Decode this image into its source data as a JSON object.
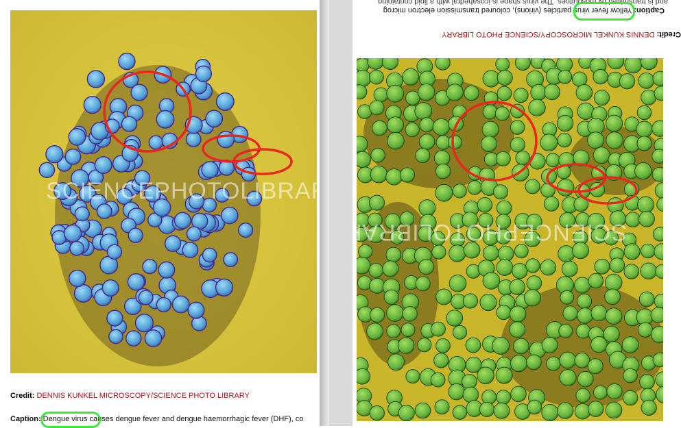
{
  "left": {
    "watermark": "SCIENCEPHOTOLIBRARY",
    "credit_label": "Credit:",
    "credit_value": "DENNIS KUNKEL MICROSCOPY/SCIENCE PHOTO LIBRARY",
    "caption_label": "Caption:",
    "caption_highlight": "Dengue virus",
    "caption_rest": " causes dengue fever and dengue haemorrhagic fever (DHF), co"
  },
  "right": {
    "watermark": "SCIENCEPHOTOLIBRARY",
    "credit_label": "Credit:",
    "credit_value": "DENNIS KUNKEL MICROSCOPY/SCIENCE PHOTO LIBRARY",
    "caption_label": "Caption:",
    "caption_highlight": "Yellow fever virus",
    "caption_rest": " particles (virions), coloured transmission electron microg",
    "caption_line2": "and is transmitted by mosquitoes. The virus shape is icosahedral with a lipid containing"
  },
  "colors": {
    "annotation_red": "#e8281e",
    "annotation_green": "#3ee63a",
    "credit_red": "#a0161a",
    "left_background": "#d6c238",
    "left_virion": "#5aaee0",
    "right_background": "#c9b52a",
    "right_virion": "#6fb83a"
  }
}
